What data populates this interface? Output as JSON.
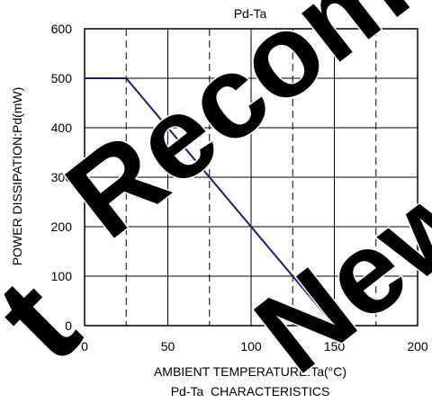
{
  "chart_data": {
    "type": "line",
    "title": "Pd-Ta",
    "caption": "Pd-Ta  CHARACTERISTICS",
    "xlabel": "AMBIENT TEMPERATURE:Ta(°C)",
    "ylabel": "POWER DISSIPATION:Pd(mW)",
    "xlim": [
      0,
      200
    ],
    "ylim": [
      0,
      600
    ],
    "x_ticks": [
      0,
      50,
      100,
      150,
      200
    ],
    "y_ticks": [
      0,
      100,
      200,
      300,
      400,
      500,
      600
    ],
    "x_minor_dashed": [
      25,
      75,
      125,
      175
    ],
    "grid": true,
    "series": [
      {
        "x": [
          0,
          25,
          150
        ],
        "y": [
          500,
          500,
          0
        ]
      }
    ],
    "colors": {
      "curve": "#1a1a80",
      "watermark": "#000000"
    }
  },
  "watermark": "Not Recommended for New Designs"
}
